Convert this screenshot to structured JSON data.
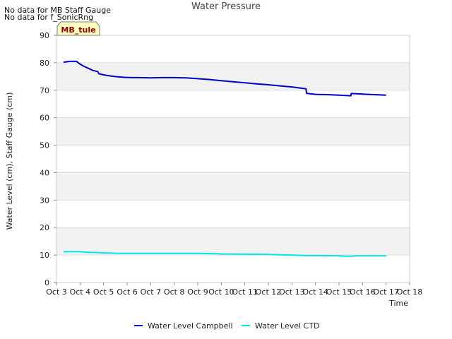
{
  "notices": [
    "No data for MB Staff Gauge",
    "No data for f_SonicRng"
  ],
  "colors": {
    "campbell": "#0000cc",
    "ctd": "#00e5ee",
    "band": "#f2f2f2",
    "badge_bg": "#ffffc0"
  },
  "chart_data": {
    "type": "line",
    "title": "Water Pressure",
    "xlabel": "Time",
    "ylabel": "Water Level (cm), Staff Gauge (cm)",
    "ylim": [
      0,
      90
    ],
    "yticks": [
      0,
      10,
      20,
      30,
      40,
      50,
      60,
      70,
      80,
      90
    ],
    "xlim": [
      3,
      18
    ],
    "xticks": [
      {
        "x": 3,
        "label": "Oct 3"
      },
      {
        "x": 4,
        "label": "Oct 4"
      },
      {
        "x": 5,
        "label": "Oct 5"
      },
      {
        "x": 6,
        "label": "Oct 6"
      },
      {
        "x": 7,
        "label": "Oct 7"
      },
      {
        "x": 8,
        "label": "Oct 8"
      },
      {
        "x": 9,
        "label": "Oct 9"
      },
      {
        "x": 10,
        "label": "Oct 10"
      },
      {
        "x": 11,
        "label": "Oct 11"
      },
      {
        "x": 12,
        "label": "Oct 12"
      },
      {
        "x": 13,
        "label": "Oct 13"
      },
      {
        "x": 14,
        "label": "Oct 14"
      },
      {
        "x": 15,
        "label": "Oct 15"
      },
      {
        "x": 16,
        "label": "Oct 16"
      },
      {
        "x": 17,
        "label": "Oct 17"
      },
      {
        "x": 18,
        "label": "Oct 18"
      }
    ],
    "grid": true,
    "legend_position": "bottom",
    "badge": "MB_tule",
    "series": [
      {
        "name": "Water Level Campbell",
        "color": "#0000cc",
        "x": [
          3.3,
          3.55,
          3.85,
          4.0,
          4.15,
          4.35,
          4.55,
          4.75,
          4.8,
          5.0,
          5.3,
          5.6,
          5.9,
          6.2,
          6.5,
          7.0,
          7.5,
          8.0,
          8.5,
          9.0,
          9.5,
          10.0,
          10.5,
          11.0,
          11.5,
          12.0,
          12.5,
          13.0,
          13.6,
          13.62,
          14.0,
          14.5,
          15.0,
          15.5,
          15.52,
          16.0,
          16.5,
          17.0
        ],
        "y": [
          80.2,
          80.5,
          80.5,
          79.5,
          78.8,
          78.0,
          77.2,
          76.8,
          76.0,
          75.6,
          75.2,
          74.9,
          74.7,
          74.6,
          74.6,
          74.5,
          74.6,
          74.6,
          74.5,
          74.2,
          73.9,
          73.5,
          73.1,
          72.7,
          72.3,
          72.0,
          71.6,
          71.2,
          70.5,
          68.9,
          68.5,
          68.4,
          68.2,
          68.0,
          68.8,
          68.6,
          68.4,
          68.2
        ]
      },
      {
        "name": "Water Level CTD",
        "color": "#00e5ee",
        "x": [
          3.3,
          4.0,
          4.3,
          4.8,
          5.0,
          5.3,
          5.6,
          6.0,
          7.0,
          8.0,
          9.0,
          9.8,
          10.0,
          11.0,
          12.0,
          12.5,
          13.0,
          13.6,
          14.0,
          15.0,
          15.3,
          15.5,
          15.8,
          16.0,
          17.0
        ],
        "y": [
          11.2,
          11.2,
          11.0,
          10.9,
          10.8,
          10.7,
          10.6,
          10.6,
          10.6,
          10.6,
          10.6,
          10.5,
          10.4,
          10.3,
          10.2,
          10.1,
          10.0,
          9.8,
          9.8,
          9.7,
          9.6,
          9.6,
          9.7,
          9.7,
          9.7
        ]
      }
    ]
  }
}
